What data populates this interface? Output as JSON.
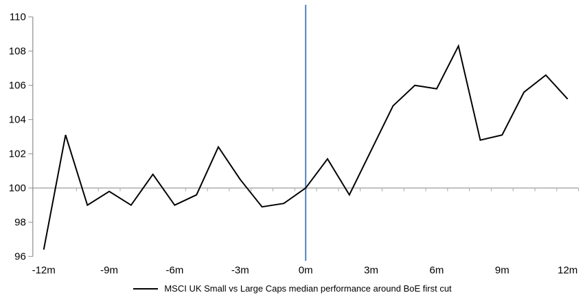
{
  "chart_data": {
    "type": "line",
    "title": "",
    "legend": "MSCI UK Small vs Large Caps median performance around BoE first cut",
    "x": [
      -12,
      -11,
      -10,
      -9,
      -8,
      -7,
      -6,
      -5,
      -4,
      -3,
      -2,
      -1,
      0,
      1,
      2,
      3,
      4,
      5,
      6,
      7,
      8,
      9,
      10,
      11,
      12
    ],
    "values": [
      96.4,
      103.1,
      99.0,
      99.8,
      99.0,
      100.8,
      99.0,
      99.6,
      102.4,
      100.5,
      98.9,
      99.1,
      100.0,
      101.7,
      99.6,
      102.2,
      104.8,
      106.0,
      105.8,
      108.3,
      102.8,
      103.1,
      105.6,
      106.6,
      105.2
    ],
    "xtick_months": [
      -12,
      -9,
      -6,
      -3,
      0,
      3,
      6,
      9,
      12
    ],
    "xtick_labels": [
      "-12m",
      "-9m",
      "-6m",
      "-3m",
      "0m",
      "3m",
      "6m",
      "9m",
      "12m"
    ],
    "ytick_values": [
      96,
      98,
      100,
      102,
      104,
      106,
      108,
      110
    ],
    "ytick_labels": [
      "96",
      "98",
      "100",
      "102",
      "104",
      "106",
      "108",
      "110"
    ],
    "ylim": [
      96,
      110
    ],
    "category_axis_at_value": 100,
    "event_line_at_month": 0,
    "legend_position": "bottom-center",
    "grid": false,
    "colors": {
      "series": "#000000",
      "event_line": "#4F81BD",
      "value_axis": "#8C8C8C",
      "category_axis": "#A6A6A6",
      "text": "#000000"
    }
  }
}
